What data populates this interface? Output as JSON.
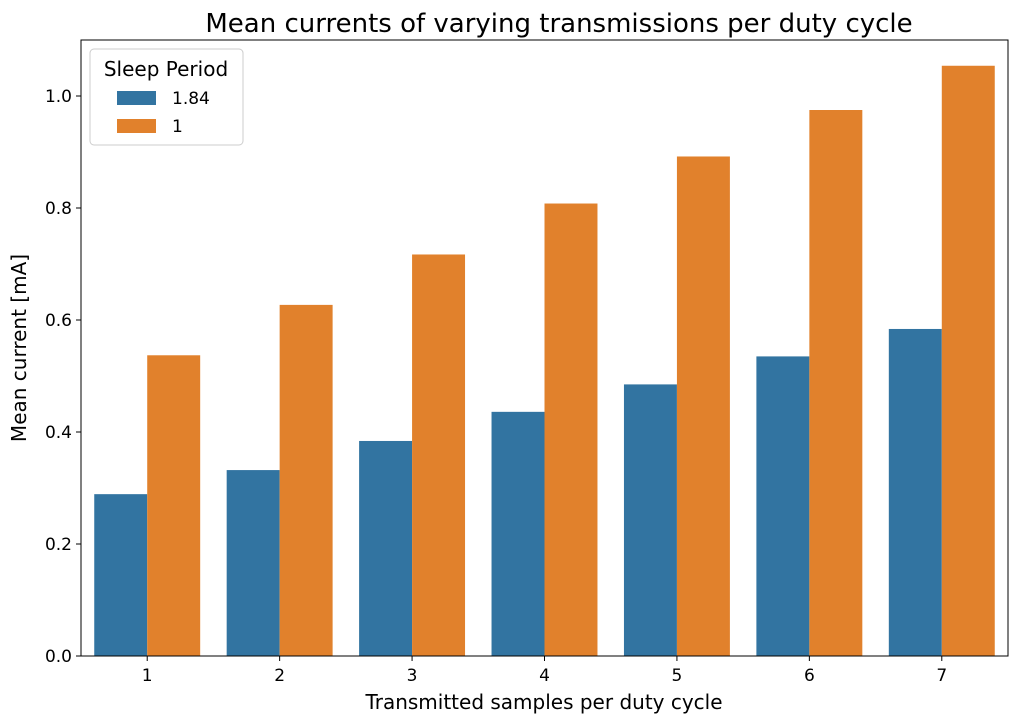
{
  "chart_data": {
    "type": "bar",
    "title": "Mean currents of varying transmissions per duty cycle",
    "xlabel": "Transmitted samples per duty cycle",
    "ylabel": "Mean current [mA]",
    "categories": [
      "1",
      "2",
      "3",
      "4",
      "5",
      "6",
      "7"
    ],
    "ylim": [
      0,
      1.1
    ],
    "yticks": [
      "0.0",
      "0.2",
      "0.4",
      "0.6",
      "0.8",
      "1.0"
    ],
    "grid": false,
    "legend": {
      "title": "Sleep Period",
      "placement": "top-left"
    },
    "series": [
      {
        "name": "1.84",
        "color": "#3274a1",
        "values": [
          0.289,
          0.332,
          0.384,
          0.436,
          0.485,
          0.535,
          0.584
        ]
      },
      {
        "name": "1",
        "color": "#e1812c",
        "values": [
          0.537,
          0.627,
          0.717,
          0.808,
          0.892,
          0.975,
          1.054
        ]
      }
    ]
  }
}
